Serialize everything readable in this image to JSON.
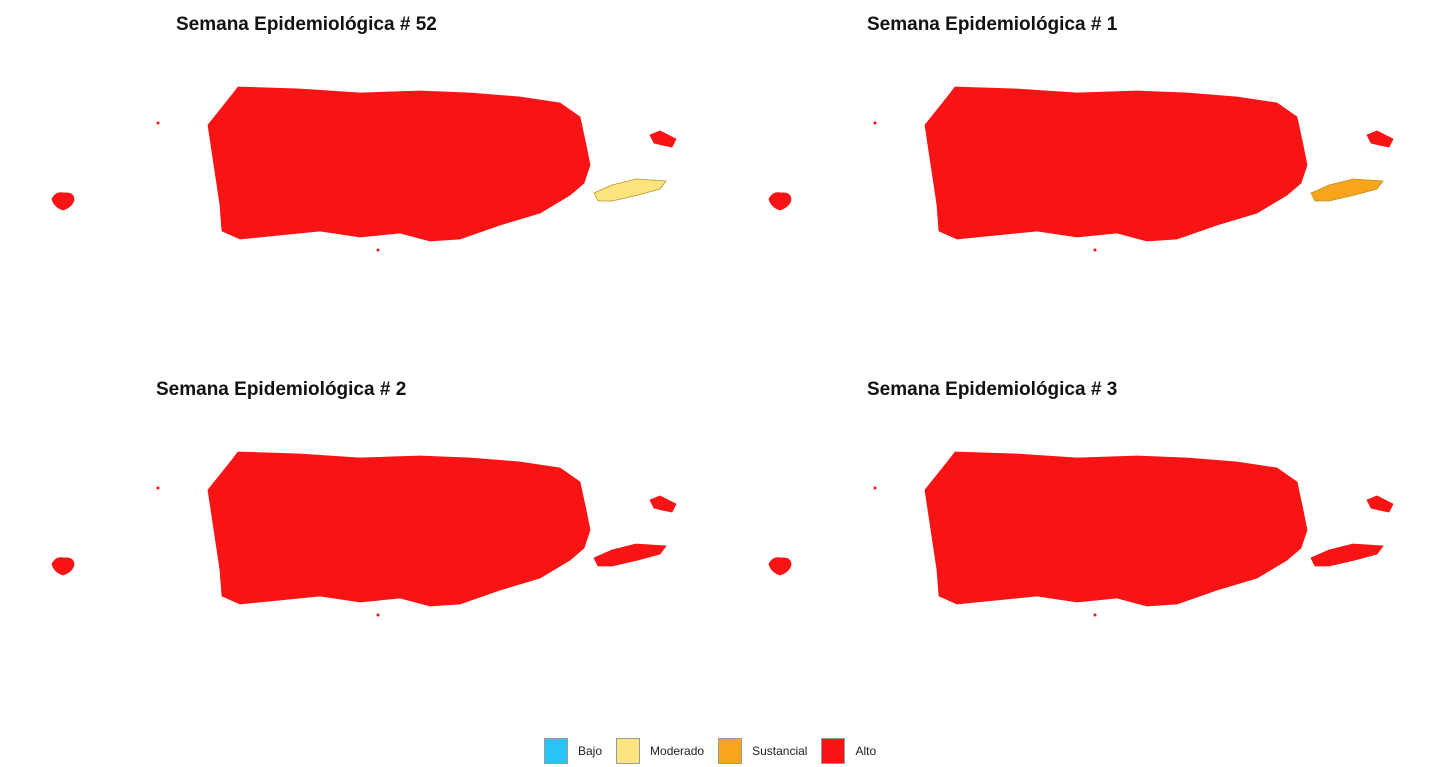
{
  "legend": [
    {
      "label": "Bajo",
      "color": "#29c4f6"
    },
    {
      "label": "Moderado",
      "color": "#fde47f"
    },
    {
      "label": "Sustancial",
      "color": "#f9a51b"
    },
    {
      "label": "Alto",
      "color": "#f81414"
    }
  ],
  "panels": [
    {
      "title": "Semana Epidemiológica # 52",
      "regions": {
        "main": "Alto",
        "mona": "Alto",
        "culebra": "Alto",
        "vieques": "Moderado"
      }
    },
    {
      "title": "Semana Epidemiológica # 1",
      "regions": {
        "main": "Alto",
        "mona": "Alto",
        "culebra": "Alto",
        "vieques": "Sustancial"
      }
    },
    {
      "title": "Semana Epidemiológica # 2",
      "regions": {
        "main": "Alto",
        "mona": "Alto",
        "culebra": "Alto",
        "vieques": "Alto"
      }
    },
    {
      "title": "Semana Epidemiológica # 3",
      "regions": {
        "main": "Alto",
        "mona": "Alto",
        "culebra": "Alto",
        "vieques": "Alto"
      }
    }
  ]
}
